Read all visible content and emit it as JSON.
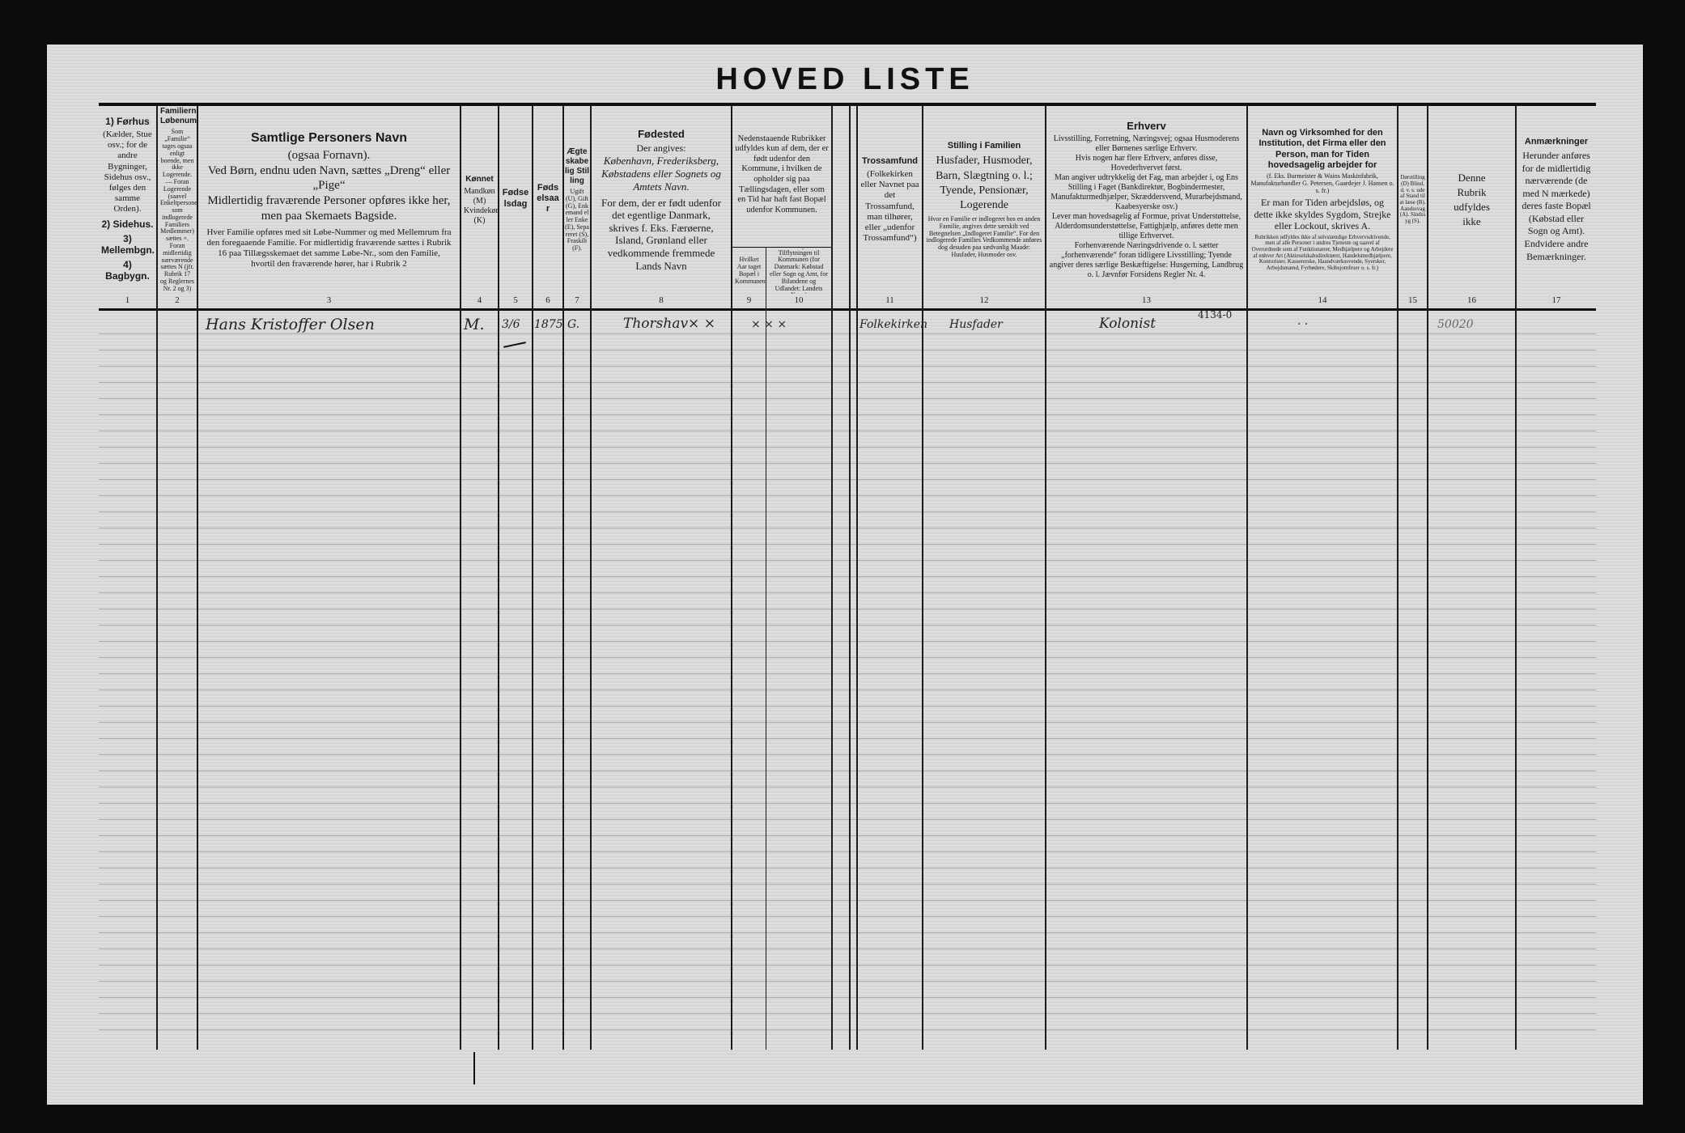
{
  "title": "HOVED LISTE",
  "columns": [
    {
      "num": "1",
      "title": "1) Førhus",
      "text": "(Kælder, Stue osv.; for de andre Bygninger, Sidehus osv., følges den samme Orden).",
      "extra": [
        "2) Sidehus.",
        "3) Mellembgn.",
        "4) Bagbygn."
      ]
    },
    {
      "num": "2",
      "title": "Familiernes Løbenumre",
      "text": "Som „Familie“ tages ogsaa enligt boende, men ikke Logerende. — Foran Logerende (saavel Enkeltpersoner som indlogerede Familiers Medlemmer) sættes ×. Foran midlertidig nærværende sættes N (jfr. Rubrik 17 og Reglernes Nr. 2 og 3)"
    },
    {
      "num": "3",
      "title": "Samtlige Personers Navn",
      "lines": [
        "(ogsaa Fornavn).",
        "Ved Børn, endnu uden Navn, sættes „Dreng“ eller „Pige“",
        "Midlertidig fraværende Personer opføres ikke her, men paa Skemaets Bagside."
      ],
      "text": "Hver Familie opføres med sit Løbe-Nummer og med Mellemrum fra den foregaaende Familie. For midlertidig fraværende sættes i Rubrik 16 paa Tillægsskemaet det samme Løbe-Nr., som den Familie, hvortil den fraværende hører, har i Rubrik 2"
    },
    {
      "num": "4",
      "title": "Kønnet",
      "text": "Mandkøn (M) Kvindekøn (K)"
    },
    {
      "num": "5",
      "title": "Fødselsdag",
      "text": ""
    },
    {
      "num": "6",
      "title": "Fødselsaar",
      "text": ""
    },
    {
      "num": "7",
      "title": "Ægteskabelig Stilling",
      "text": "Ugift (U), Gift (G), Enkemand eller Enke (E), Separeret (S), Fraskilt (F)."
    },
    {
      "num": "8",
      "title": "Fødested",
      "lines": [
        "Der angives:",
        "København, Frederiksberg, Købstadens eller Sognets og Amtets Navn."
      ],
      "text": "For dem, der er født udenfor det egentlige Danmark, skrives f. Eks. Færøerne, Island, Grønland eller vedkommende fremmede Lands Navn"
    },
    {
      "num": "9",
      "title": "",
      "text": "Hvilket Aar taget Bopæl i Kommunen"
    },
    {
      "num": "10",
      "title": "",
      "text": "Sidste Bopæl før Tilflytningen til Kommunen (for Danmark: Købstad eller Sogn og Amt, for Bilandene og Udlandet: Landets Navn)"
    },
    {
      "num": "11",
      "title": "Trossamfund",
      "text": "(Folkekirken eller Navnet paa det Trossamfund, man tilhører, eller „udenfor Trossamfund“)"
    },
    {
      "num": "12",
      "title": "Stilling i Familien",
      "lines": [
        "Husfader, Husmoder, Barn, Slægtning o. l.; Tyende, Pensionær, Logerende"
      ],
      "text": "Hvor en Familie er indlogeret hos en anden Familie, angives dette særskilt ved Betegnelsen „Indlogeret Familie“. For den indlogerede Families Vedkommende anføres dog desuden paa sædvanlig Maade: Husfader, Husmoder osv."
    },
    {
      "num": "13",
      "title": "Erhverv",
      "lines": [
        "Livsstilling, Forretning, Næringsvej; ogsaa Husmoderens eller Børnenes særlige Erhverv.",
        "Hvis nogen har flere Erhverv, anføres disse, Hovederhvervet først.",
        "Man angiver udtrykkelig det Fag, man arbejder i, og Ens Stilling i Faget (Bankdirektør, Bogbindermester, Manufakturmedhjælper, Skræddersvend, Murarbejdsmand, Kaabesyerske osv.)",
        "Lever man hovedsagelig af Formue, privat Understøttelse, Alderdomsunderstøttelse, Fattighjælp, anføres dette men tillige Erhvervet."
      ],
      "text": "Forhenværende Næringsdrivende o. l. sætter „forhenværende“ foran tidligere Livsstilling; Tyende angiver deres særlige Beskæftigelse: Husgerning, Landbrug o. l. Jævnfør Forsidens Regler Nr. 4."
    },
    {
      "num": "14",
      "title": "Navn og Virksomhed for den Institution, det Firma eller den Person, man for Tiden hovedsagelig arbejder for",
      "lines": [
        "(f. Eks. Burmeister & Wains Maskinfabrik, Manufakturhandler G. Petersen, Gaardejer J. Hansen o. s. fr.)",
        "Er man for Tiden arbejdsløs, og dette ikke skyldes Sygdom, Strejke eller Lockout, skrives A."
      ],
      "text": "Rubrikken udfyldes ikke af selvstændige Erhvervsdrivende, men af alle Personer i andres Tjeneste og saavel af Overordnede som af Funktionærer, Medhjælpere og Arbejdere af enhver Art (Aktieselskabsdirektører, Handelsmedhjælpere, Kontorister, Kassererske, Haandværkssvende, Syersker, Arbejdsmænd, Fyrbødere, Skibsjomfruer o. s. fr.)"
    },
    {
      "num": "15",
      "title": "",
      "text": "Dørstilling (D) Blind, d. v. s. ude af Stand til at læse (B). Aandssvag (A). Sindssyg (S)."
    },
    {
      "num": "16",
      "title": "",
      "text": "Denne Rubrik udfyldes ikke"
    },
    {
      "num": "17",
      "title": "Anmærkninger",
      "text": "Herunder anføres for de midlertidig nærværende (de med N mærkede) deres faste Bopæl (Købstad eller Sogn og Amt). Endvidere andre Bemærkninger."
    }
  ],
  "col9_10_header": "Nedenstaaende Rubrikker udfyldes kun af dem, der er født udenfor den Kommune, i hvilken de opholder sig paa Tællingsdagen, eller som en Tid har haft fast Bopæl udenfor Kommunen.",
  "entry": {
    "name": "Hans Kristoffer Olsen",
    "sex": "M.",
    "birth_day": "3/6",
    "birth_year": "1875",
    "marital": "G.",
    "birthplace": "Thorshav× ×",
    "col10": "× × ×",
    "religion": "Folkekirken",
    "family_position": "Husfader",
    "occupation": "Kolonist",
    "occupation_code": "4134-0",
    "col14": "· ·",
    "col16": "50020"
  }
}
